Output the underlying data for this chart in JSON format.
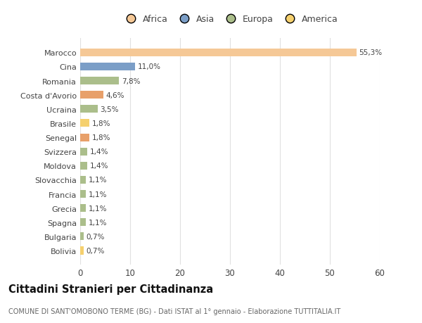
{
  "countries": [
    "Bolivia",
    "Bulgaria",
    "Spagna",
    "Grecia",
    "Francia",
    "Slovacchia",
    "Moldova",
    "Svizzera",
    "Senegal",
    "Brasile",
    "Ucraina",
    "Costa d'Avorio",
    "Romania",
    "Cina",
    "Marocco"
  ],
  "values": [
    0.7,
    0.7,
    1.1,
    1.1,
    1.1,
    1.1,
    1.4,
    1.4,
    1.8,
    1.8,
    3.5,
    4.6,
    7.8,
    11.0,
    55.3
  ],
  "labels": [
    "0,7%",
    "0,7%",
    "1,1%",
    "1,1%",
    "1,1%",
    "1,1%",
    "1,4%",
    "1,4%",
    "1,8%",
    "1,8%",
    "3,5%",
    "4,6%",
    "7,8%",
    "11,0%",
    "55,3%"
  ],
  "colors": [
    "#F5D06E",
    "#ABBE8B",
    "#ABBE8B",
    "#ABBE8B",
    "#ABBE8B",
    "#ABBE8B",
    "#ABBE8B",
    "#ABBE8B",
    "#E8A06A",
    "#F5D06E",
    "#ABBE8B",
    "#E8A06A",
    "#ABBE8B",
    "#7B9EC7",
    "#F5C896"
  ],
  "legend_labels": [
    "Africa",
    "Asia",
    "Europa",
    "America"
  ],
  "legend_colors": [
    "#F5C896",
    "#7B9EC7",
    "#ABBE8B",
    "#F5D06E"
  ],
  "title": "Cittadini Stranieri per Cittadinanza",
  "subtitle": "COMUNE DI SANT'OMOBONO TERME (BG) - Dati ISTAT al 1° gennaio - Elaborazione TUTTITALIA.IT",
  "xlim": [
    0,
    60
  ],
  "xticks": [
    0,
    10,
    20,
    30,
    40,
    50,
    60
  ],
  "bg_color": "#ffffff",
  "plot_bg_color": "#ffffff",
  "grid_color": "#e0e0e0",
  "label_color": "#444444",
  "title_color": "#111111",
  "subtitle_color": "#666666"
}
